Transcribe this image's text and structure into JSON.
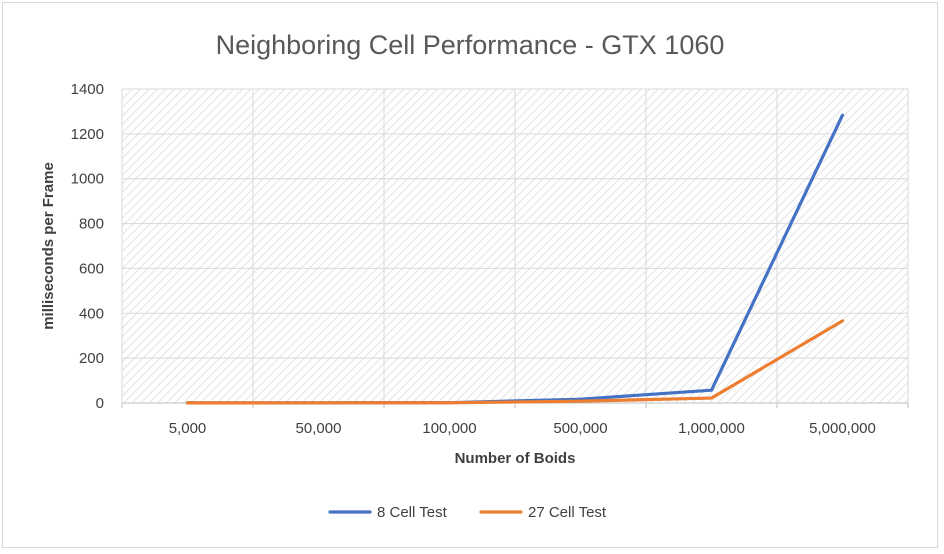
{
  "chart_data": {
    "type": "line",
    "title": "Neighboring Cell Performance - GTX 1060",
    "xlabel": "Number of Boids",
    "ylabel": "milliseconds per Frame",
    "categories": [
      "5,000",
      "50,000",
      "100,000",
      "500,000",
      "1,000,000",
      "5,000,000"
    ],
    "ylim": [
      0,
      1400
    ],
    "yticks": [
      0,
      200,
      400,
      600,
      800,
      1000,
      1200,
      1400
    ],
    "grid": true,
    "legend_position": "bottom",
    "series": [
      {
        "name": "8 Cell Test",
        "color": "#4472c4",
        "values": [
          0.5,
          0.8,
          1.5,
          17,
          57,
          1283
        ]
      },
      {
        "name": "27 Cell Test",
        "color": "#ed7d31",
        "values": [
          0.5,
          0.8,
          1.2,
          8,
          22,
          366
        ]
      }
    ]
  }
}
